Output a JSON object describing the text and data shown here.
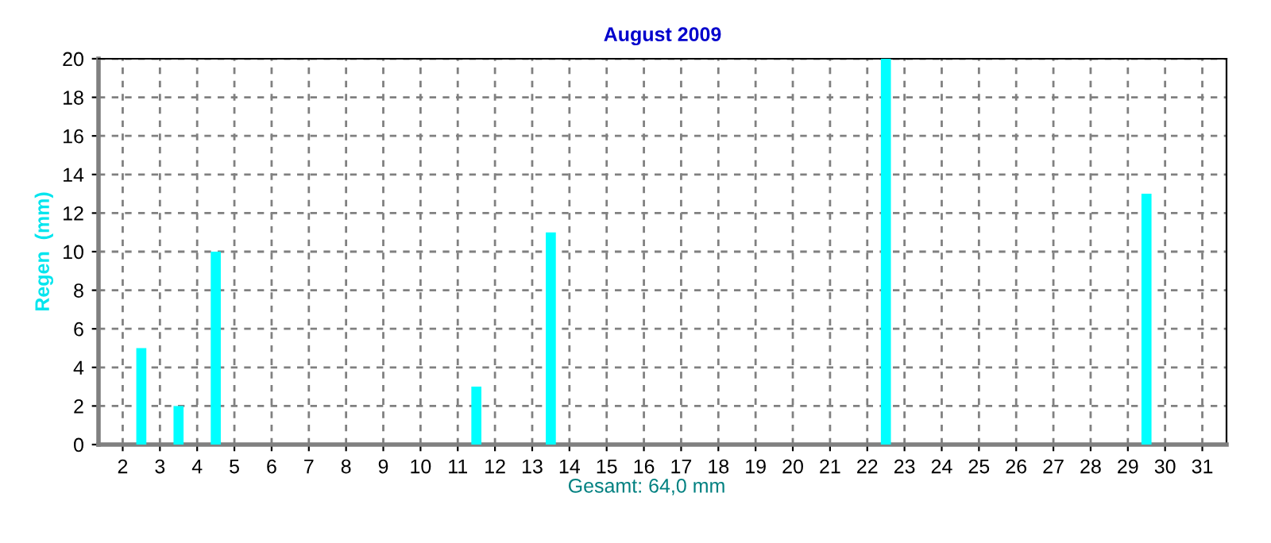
{
  "chart_data": {
    "type": "bar",
    "title": "August 2009",
    "ylabel": "Regen  (mm)",
    "x": [
      1.5,
      2.5,
      3.5,
      4.5,
      5.5,
      6.5,
      7.5,
      8.5,
      9.5,
      10.5,
      11.5,
      12.5,
      13.5,
      14.5,
      15.5,
      16.5,
      17.5,
      18.5,
      19.5,
      20.5,
      21.5,
      22.5,
      23.5,
      24.5,
      25.5,
      26.5,
      27.5,
      28.5,
      29.5,
      30.5,
      31.5
    ],
    "values": [
      0,
      5,
      2,
      10,
      0,
      0,
      0,
      0,
      0,
      0,
      3,
      0,
      11,
      0,
      0,
      0,
      0,
      0,
      0,
      0,
      0,
      20,
      0,
      0,
      0,
      0,
      0,
      0,
      13,
      0,
      0
    ],
    "color": "#00ffff",
    "xlim": [
      1.35,
      31.65
    ],
    "xticks": [
      2,
      3,
      4,
      5,
      6,
      7,
      8,
      9,
      10,
      11,
      12,
      13,
      14,
      15,
      16,
      17,
      18,
      19,
      20,
      21,
      22,
      23,
      24,
      25,
      26,
      27,
      28,
      29,
      30,
      31
    ],
    "ylim": [
      0,
      20
    ],
    "yticks": [
      0,
      2,
      4,
      6,
      8,
      10,
      12,
      14,
      16,
      18,
      20
    ],
    "grid": true,
    "line_style": "dashed",
    "annotations": [
      "Gesamt: 64,0 mm"
    ]
  }
}
